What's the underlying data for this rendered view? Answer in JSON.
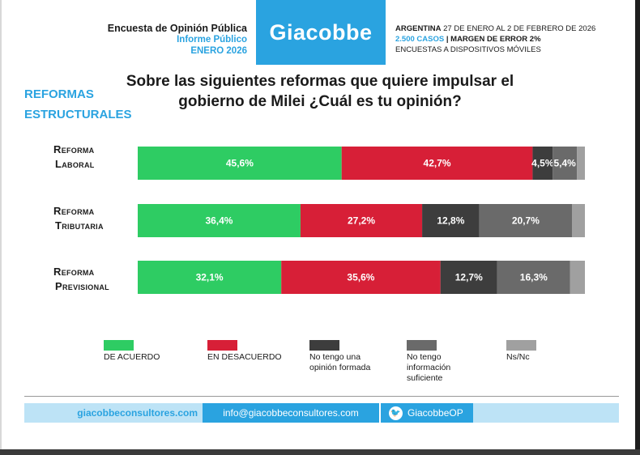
{
  "header": {
    "survey_title": "Encuesta de Opinión Pública",
    "report_type": "Informe Público",
    "period": "ENERO 2026",
    "brand": "Giacobbe",
    "country": "ARGENTINA",
    "dates": "27 DE ENERO AL 2 DE FEBRERO DE 2026",
    "cases": "2.500 CASOS",
    "separator": "|",
    "margin": "MARGEN DE ERROR 2%",
    "method": "ENCUESTAS A DISPOSITIVOS MÓVILES"
  },
  "section": {
    "line1": "REFORMAS",
    "line2": "ESTRUCTURALES"
  },
  "question": {
    "line1": "Sobre las siguientes reformas que quiere impulsar el",
    "line2": "gobierno de Milei ¿Cuál es tu opinión?"
  },
  "rows": [
    {
      "line1": "Reforma",
      "line2": "Laboral"
    },
    {
      "line1": "Reforma",
      "line2": "Tributaria"
    },
    {
      "line1": "Reforma",
      "line2": "Previsional"
    }
  ],
  "legend": [
    {
      "label": "DE ACUERDO"
    },
    {
      "label": "EN DESACUERDO"
    },
    {
      "label": "No tengo una opinión formada"
    },
    {
      "label": "No tengo información suficiente"
    },
    {
      "label": "Ns/Nc"
    }
  ],
  "colors": {
    "acuerdo": "#2ecc63",
    "desacuerdo": "#d71f37",
    "sin_opinion": "#3d3d3d",
    "sin_info": "#6a6a6a",
    "nsnc": "#a0a0a0",
    "accent": "#2aa3e0"
  },
  "chart_data": {
    "type": "bar",
    "orientation": "horizontal-stacked",
    "title": "Sobre las siguientes reformas que quiere impulsar el gobierno de Milei ¿Cuál es tu opinión?",
    "categories": [
      "Reforma Laboral",
      "Reforma Tributaria",
      "Reforma Previsional"
    ],
    "series": [
      {
        "name": "DE ACUERDO",
        "values": [
          45.6,
          36.4,
          32.1
        ],
        "labels": [
          "45,6%",
          "36,4%",
          "32,1%"
        ]
      },
      {
        "name": "EN DESACUERDO",
        "values": [
          42.7,
          27.2,
          35.6
        ],
        "labels": [
          "42,7%",
          "27,2%",
          "35,6%"
        ]
      },
      {
        "name": "No tengo una opinión formada",
        "values": [
          4.5,
          12.8,
          12.7
        ],
        "labels": [
          "4,5%",
          "12,8%",
          "12,7%"
        ]
      },
      {
        "name": "No tengo información suficiente",
        "values": [
          5.4,
          20.7,
          16.3
        ],
        "labels": [
          "5,4%",
          "20,7%",
          "16,3%"
        ]
      },
      {
        "name": "Ns/Nc",
        "values": [
          1.8,
          2.9,
          3.3
        ],
        "labels": [
          "",
          "",
          ""
        ]
      }
    ],
    "xlim": [
      0,
      100
    ],
    "legend_position": "bottom"
  },
  "footer": {
    "website": "giacobbeconsultores.com",
    "email": "info@giacobbeconsultores.com",
    "twitter_glyph": "🐦",
    "twitter": "GiacobbeOP"
  }
}
